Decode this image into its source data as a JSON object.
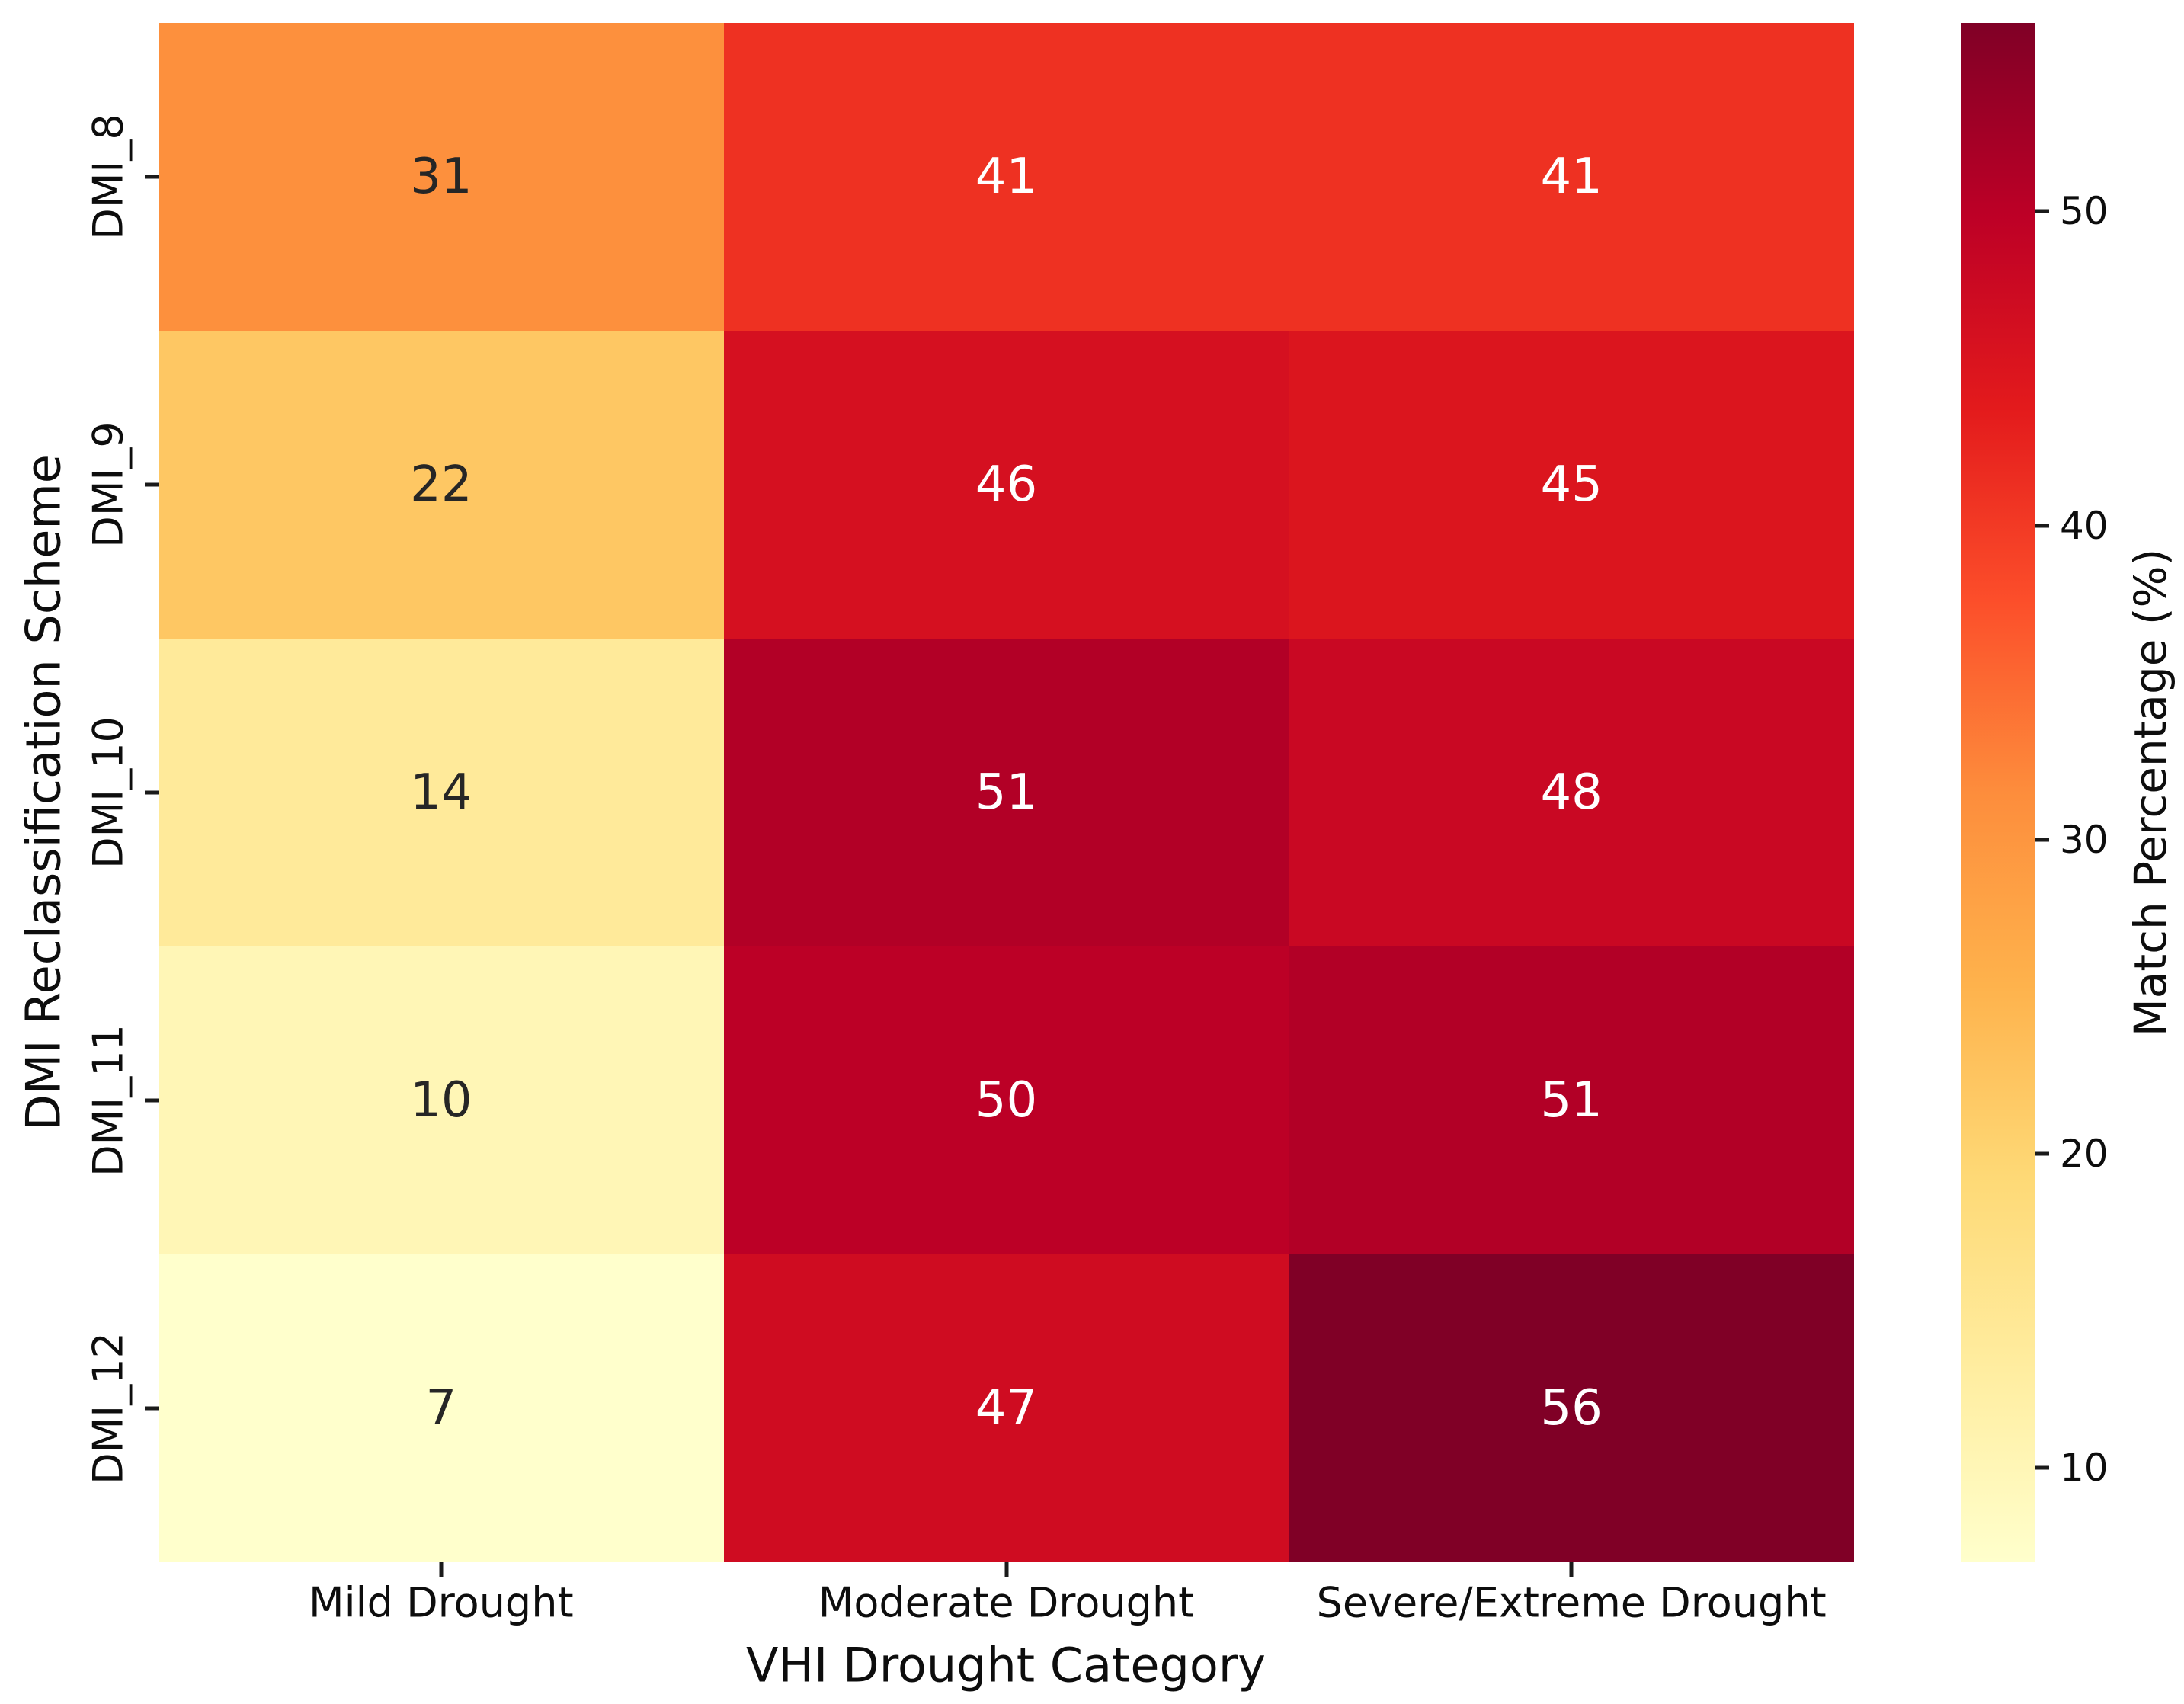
{
  "figure": {
    "background": "#ffffff",
    "text_color": "#0d0d0d"
  },
  "chart_data": {
    "type": "heatmap",
    "title": "",
    "xlabel": "VHI Drought Category",
    "ylabel": "DMI Reclassification Scheme",
    "x_categories": [
      "Mild Drought",
      "Moderate Drought",
      "Severe/Extreme Drought"
    ],
    "y_categories": [
      "DMI_8",
      "DMI_9",
      "DMI_10",
      "DMI_11",
      "DMI_12"
    ],
    "values": [
      [
        31,
        41,
        41
      ],
      [
        22,
        46,
        45
      ],
      [
        14,
        51,
        48
      ],
      [
        10,
        50,
        51
      ],
      [
        7,
        47,
        56
      ]
    ],
    "colorbar": {
      "label": "Match Percentage (%)",
      "ticks": [
        10,
        20,
        30,
        40,
        50
      ],
      "vmin": 7,
      "vmax": 56
    },
    "colormap": {
      "name": "YlOrRd",
      "anchors": [
        "#FFFFCC",
        "#FFEDA0",
        "#FED976",
        "#FEB24C",
        "#FD8D3C",
        "#FC4E2A",
        "#E31A1C",
        "#BD0026",
        "#800026"
      ]
    },
    "annotation_colors": {
      "dark": "#262626",
      "light": "#ffffff"
    },
    "layout_hints": {
      "grid": "off",
      "cell_borders": "none",
      "legend_position": "right-colorbar"
    }
  }
}
